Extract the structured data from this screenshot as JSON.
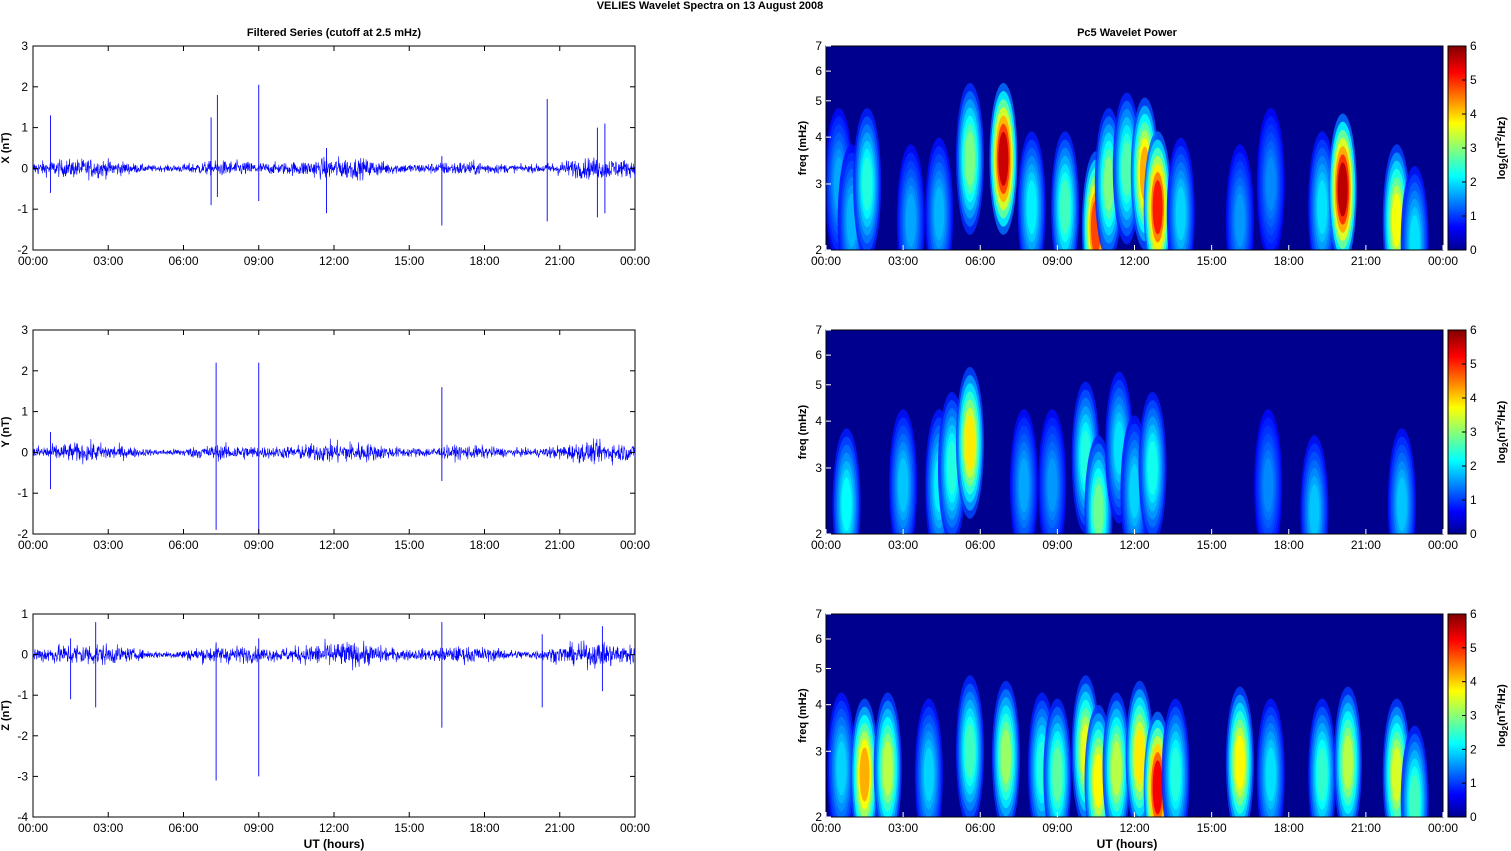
{
  "figure": {
    "title": "VELIES Wavelet Spectra on 13 August    2008",
    "left_title": "Filtered Series (cutoff at 2.5 mHz)",
    "right_title": "Pc5 Wavelet Power",
    "xlabel": "UT (hours)"
  },
  "chart_data": [
    {
      "type": "line",
      "panel": "X",
      "ylabel": "X (nT)",
      "ylim": [
        -2,
        3
      ],
      "yticks": [
        -2,
        -1,
        0,
        1,
        2,
        3
      ],
      "xlim": [
        0,
        24
      ],
      "xticks": [
        "00:00",
        "03:00",
        "06:00",
        "09:00",
        "12:00",
        "15:00",
        "18:00",
        "21:00",
        "00:00"
      ],
      "line_color": "#0000ff",
      "noise_amplitude": 0.12,
      "spikes": [
        {
          "t": 0.7,
          "min": -0.6,
          "max": 1.3
        },
        {
          "t": 7.1,
          "min": -0.9,
          "max": 1.25
        },
        {
          "t": 7.35,
          "min": -0.7,
          "max": 1.8
        },
        {
          "t": 9.0,
          "min": -0.8,
          "max": 2.05
        },
        {
          "t": 11.7,
          "min": -1.1,
          "max": 0.5
        },
        {
          "t": 16.3,
          "min": -1.4,
          "max": 0.3
        },
        {
          "t": 20.5,
          "min": -1.3,
          "max": 1.7
        },
        {
          "t": 22.5,
          "min": -1.2,
          "max": 1.0
        },
        {
          "t": 22.8,
          "min": -1.1,
          "max": 1.1
        }
      ]
    },
    {
      "type": "line",
      "panel": "Y",
      "ylabel": "Y (nT)",
      "ylim": [
        -2,
        3
      ],
      "yticks": [
        -2,
        -1,
        0,
        1,
        2,
        3
      ],
      "xlim": [
        0,
        24
      ],
      "xticks": [
        "00:00",
        "03:00",
        "06:00",
        "09:00",
        "12:00",
        "15:00",
        "18:00",
        "21:00",
        "00:00"
      ],
      "line_color": "#0000ff",
      "noise_amplitude": 0.12,
      "spikes": [
        {
          "t": 0.7,
          "min": -0.9,
          "max": 0.5
        },
        {
          "t": 7.3,
          "min": -1.9,
          "max": 2.2
        },
        {
          "t": 9.0,
          "min": -2.0,
          "max": 2.2
        },
        {
          "t": 16.3,
          "min": -0.7,
          "max": 1.6
        }
      ]
    },
    {
      "type": "line",
      "panel": "Z",
      "ylabel": "Z (nT)",
      "ylim": [
        -4,
        1
      ],
      "yticks": [
        -4,
        -3,
        -2,
        -1,
        0,
        1
      ],
      "xlim": [
        0,
        24
      ],
      "xticks": [
        "00:00",
        "03:00",
        "06:00",
        "09:00",
        "12:00",
        "15:00",
        "18:00",
        "21:00",
        "00:00"
      ],
      "line_color": "#0000ff",
      "noise_amplitude": 0.14,
      "spikes": [
        {
          "t": 1.5,
          "min": -1.1,
          "max": 0.4
        },
        {
          "t": 2.5,
          "min": -1.3,
          "max": 0.8
        },
        {
          "t": 7.3,
          "min": -3.1,
          "max": 0.3
        },
        {
          "t": 9.0,
          "min": -3.0,
          "max": 0.4
        },
        {
          "t": 16.3,
          "min": -1.8,
          "max": 0.8
        },
        {
          "t": 20.3,
          "min": -1.3,
          "max": 0.5
        },
        {
          "t": 22.7,
          "min": -0.9,
          "max": 0.7
        }
      ]
    },
    {
      "type": "heatmap",
      "panel": "X",
      "ylabel": "freq (mHz)",
      "yscale": "log",
      "ylim": [
        2,
        7
      ],
      "yticks": [
        2,
        3,
        4,
        5,
        6,
        7
      ],
      "xlim": [
        0,
        24
      ],
      "xticks": [
        "00:00",
        "03:00",
        "06:00",
        "09:00",
        "12:00",
        "15:00",
        "18:00",
        "21:00",
        "00:00"
      ],
      "colorbar": {
        "label": "log2(nT^2/Hz)",
        "range": [
          0,
          6
        ],
        "ticks": [
          0,
          1,
          2,
          3,
          4,
          5,
          6
        ],
        "colormap": "jet"
      },
      "blobs": [
        {
          "t": 0.5,
          "f": 3.0,
          "a": 1.2
        },
        {
          "t": 1.0,
          "f": 2.4,
          "a": 1.3
        },
        {
          "t": 1.6,
          "f": 3.0,
          "a": 2.0
        },
        {
          "t": 3.3,
          "f": 2.4,
          "a": 1.2
        },
        {
          "t": 4.4,
          "f": 2.5,
          "a": 1.3
        },
        {
          "t": 5.6,
          "f": 3.5,
          "a": 2.6
        },
        {
          "t": 6.9,
          "f": 3.5,
          "a": 5.5
        },
        {
          "t": 8.0,
          "f": 2.6,
          "a": 1.7
        },
        {
          "t": 9.3,
          "f": 2.6,
          "a": 2.2
        },
        {
          "t": 10.5,
          "f": 2.3,
          "a": 4.7
        },
        {
          "t": 11.0,
          "f": 3.0,
          "a": 2.6
        },
        {
          "t": 11.7,
          "f": 3.3,
          "a": 2.3
        },
        {
          "t": 12.4,
          "f": 3.2,
          "a": 4.0
        },
        {
          "t": 12.9,
          "f": 2.6,
          "a": 5.0
        },
        {
          "t": 13.8,
          "f": 2.5,
          "a": 1.5
        },
        {
          "t": 16.1,
          "f": 2.4,
          "a": 1.1
        },
        {
          "t": 17.3,
          "f": 3.0,
          "a": 1.0
        },
        {
          "t": 19.3,
          "f": 2.6,
          "a": 1.6
        },
        {
          "t": 20.1,
          "f": 2.9,
          "a": 5.6
        },
        {
          "t": 22.2,
          "f": 2.4,
          "a": 3.4
        },
        {
          "t": 22.9,
          "f": 2.1,
          "a": 1.6
        }
      ]
    },
    {
      "type": "heatmap",
      "panel": "Y",
      "ylabel": "freq (mHz)",
      "yscale": "log",
      "ylim": [
        2,
        7
      ],
      "yticks": [
        2,
        3,
        4,
        5,
        6,
        7
      ],
      "xlim": [
        0,
        24
      ],
      "xticks": [
        "00:00",
        "03:00",
        "06:00",
        "09:00",
        "12:00",
        "15:00",
        "18:00",
        "21:00",
        "00:00"
      ],
      "colorbar": {
        "label": "log2(nT^2/Hz)",
        "range": [
          0,
          6
        ],
        "ticks": [
          0,
          1,
          2,
          3,
          4,
          5,
          6
        ],
        "colormap": "jet"
      },
      "blobs": [
        {
          "t": 0.8,
          "f": 2.4,
          "a": 1.8
        },
        {
          "t": 3.0,
          "f": 2.7,
          "a": 1.4
        },
        {
          "t": 4.4,
          "f": 2.7,
          "a": 1.7
        },
        {
          "t": 4.9,
          "f": 3.0,
          "a": 2.0
        },
        {
          "t": 5.6,
          "f": 3.5,
          "a": 3.6
        },
        {
          "t": 7.7,
          "f": 2.7,
          "a": 1.2
        },
        {
          "t": 8.8,
          "f": 2.7,
          "a": 1.1
        },
        {
          "t": 10.1,
          "f": 3.2,
          "a": 2.0
        },
        {
          "t": 10.6,
          "f": 2.3,
          "a": 2.5
        },
        {
          "t": 11.4,
          "f": 3.4,
          "a": 1.6
        },
        {
          "t": 12.0,
          "f": 2.6,
          "a": 1.5
        },
        {
          "t": 12.7,
          "f": 3.0,
          "a": 1.9
        },
        {
          "t": 17.2,
          "f": 2.7,
          "a": 1.0
        },
        {
          "t": 19.0,
          "f": 2.3,
          "a": 1.4
        },
        {
          "t": 22.4,
          "f": 2.4,
          "a": 1.4
        }
      ]
    },
    {
      "type": "heatmap",
      "panel": "Z",
      "ylabel": "freq (mHz)",
      "yscale": "log",
      "ylim": [
        2,
        7
      ],
      "yticks": [
        2,
        3,
        4,
        5,
        6,
        7
      ],
      "xlim": [
        0,
        24
      ],
      "xticks": [
        "00:00",
        "03:00",
        "06:00",
        "09:00",
        "12:00",
        "15:00",
        "18:00",
        "21:00",
        "00:00"
      ],
      "colorbar": {
        "label": "log2(nT^2/Hz)",
        "range": [
          0,
          6
        ],
        "ticks": [
          0,
          1,
          2,
          3,
          4,
          5,
          6
        ],
        "colormap": "jet"
      },
      "blobs": [
        {
          "t": 0.6,
          "f": 2.7,
          "a": 1.5
        },
        {
          "t": 1.5,
          "f": 2.6,
          "a": 4.0
        },
        {
          "t": 2.4,
          "f": 2.7,
          "a": 3.0
        },
        {
          "t": 4.0,
          "f": 2.6,
          "a": 1.5
        },
        {
          "t": 5.6,
          "f": 3.0,
          "a": 2.2
        },
        {
          "t": 7.0,
          "f": 2.9,
          "a": 2.8
        },
        {
          "t": 8.4,
          "f": 2.7,
          "a": 2.0
        },
        {
          "t": 9.0,
          "f": 2.6,
          "a": 2.4
        },
        {
          "t": 10.1,
          "f": 3.0,
          "a": 3.3
        },
        {
          "t": 10.6,
          "f": 2.5,
          "a": 3.5
        },
        {
          "t": 11.3,
          "f": 2.7,
          "a": 3.0
        },
        {
          "t": 12.2,
          "f": 2.9,
          "a": 3.6
        },
        {
          "t": 12.9,
          "f": 2.4,
          "a": 5.2
        },
        {
          "t": 13.6,
          "f": 2.6,
          "a": 2.0
        },
        {
          "t": 16.1,
          "f": 2.8,
          "a": 3.5
        },
        {
          "t": 17.3,
          "f": 2.6,
          "a": 1.6
        },
        {
          "t": 19.3,
          "f": 2.6,
          "a": 2.1
        },
        {
          "t": 20.3,
          "f": 2.8,
          "a": 3.0
        },
        {
          "t": 22.2,
          "f": 2.6,
          "a": 3.2
        },
        {
          "t": 22.9,
          "f": 2.2,
          "a": 2.2
        }
      ]
    }
  ]
}
